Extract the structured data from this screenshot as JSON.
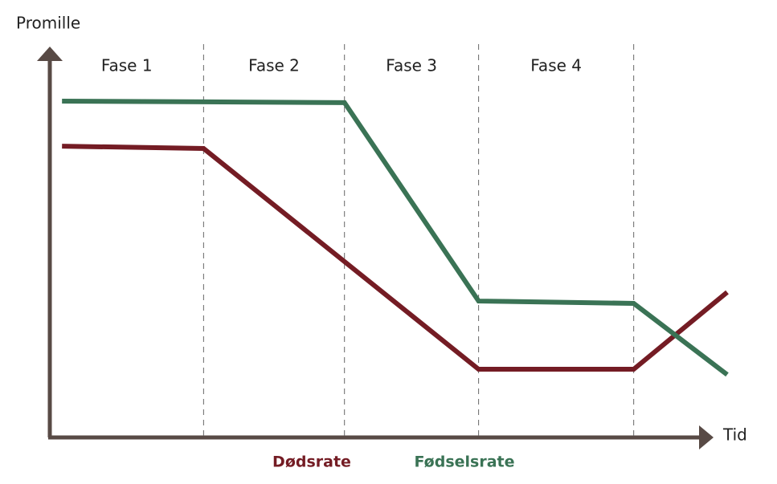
{
  "chart_data": {
    "type": "line",
    "y_label": "Promille",
    "x_label": "Tid",
    "phases": [
      "Fase 1",
      "Fase 2",
      "Fase 3",
      "Fase 4"
    ],
    "phase_boundaries": [
      22.7,
      43.5,
      63.3,
      86.2
    ],
    "xlim": [
      0,
      100
    ],
    "ylim": [
      0,
      100
    ],
    "series": [
      {
        "name": "Dødsrate",
        "color": "#741c24",
        "x": [
          1.8,
          22.7,
          63.3,
          86.2,
          100
        ],
        "values": [
          75.6,
          75.0,
          17.7,
          17.7,
          37.7
        ]
      },
      {
        "name": "Fødselsrate",
        "color": "#3a7355",
        "x": [
          1.8,
          43.5,
          63.3,
          86.2,
          100
        ],
        "values": [
          87.3,
          86.9,
          35.4,
          34.8,
          16.3
        ]
      }
    ]
  }
}
